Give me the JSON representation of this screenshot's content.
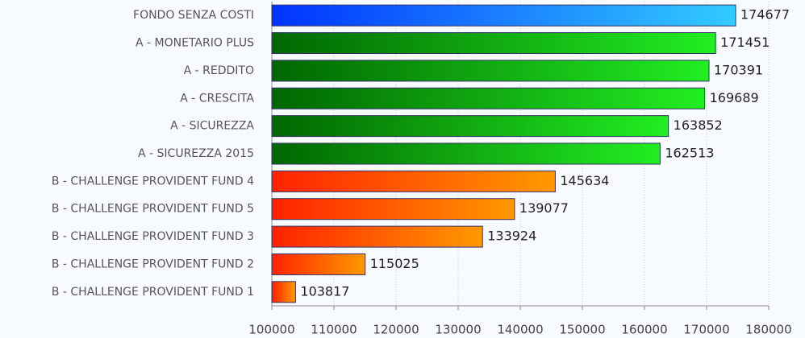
{
  "chart_data": {
    "type": "bar",
    "orientation": "horizontal",
    "categories": [
      "FONDO SENZA COSTI",
      "A - MONETARIO PLUS",
      "A - REDDITO",
      "A - CRESCITA",
      "A - SICUREZZA",
      "A - SICUREZZA 2015",
      "B - CHALLENGE PROVIDENT FUND 4",
      "B - CHALLENGE PROVIDENT FUND 5",
      "B - CHALLENGE PROVIDENT FUND 3",
      "B - CHALLENGE PROVIDENT FUND 2",
      "B - CHALLENGE PROVIDENT FUND 1"
    ],
    "values": [
      174677,
      171451,
      170391,
      169689,
      163852,
      162513,
      145634,
      139077,
      133924,
      115025,
      103817
    ],
    "colors": [
      [
        "#0033ff",
        "#33ccff"
      ],
      [
        "#006600",
        "#22ee22"
      ],
      [
        "#006600",
        "#22ee22"
      ],
      [
        "#006600",
        "#22ee22"
      ],
      [
        "#006600",
        "#22ee22"
      ],
      [
        "#006600",
        "#22ee22"
      ],
      [
        "#ff2200",
        "#ff9900"
      ],
      [
        "#ff2200",
        "#ff9900"
      ],
      [
        "#ff2200",
        "#ff9900"
      ],
      [
        "#ff2200",
        "#ff9900"
      ],
      [
        "#ff2200",
        "#ff9900"
      ]
    ],
    "xlim": [
      100000,
      180000
    ],
    "xticks": [
      100000,
      110000,
      120000,
      130000,
      140000,
      150000,
      160000,
      170000,
      180000
    ],
    "grid": true
  }
}
